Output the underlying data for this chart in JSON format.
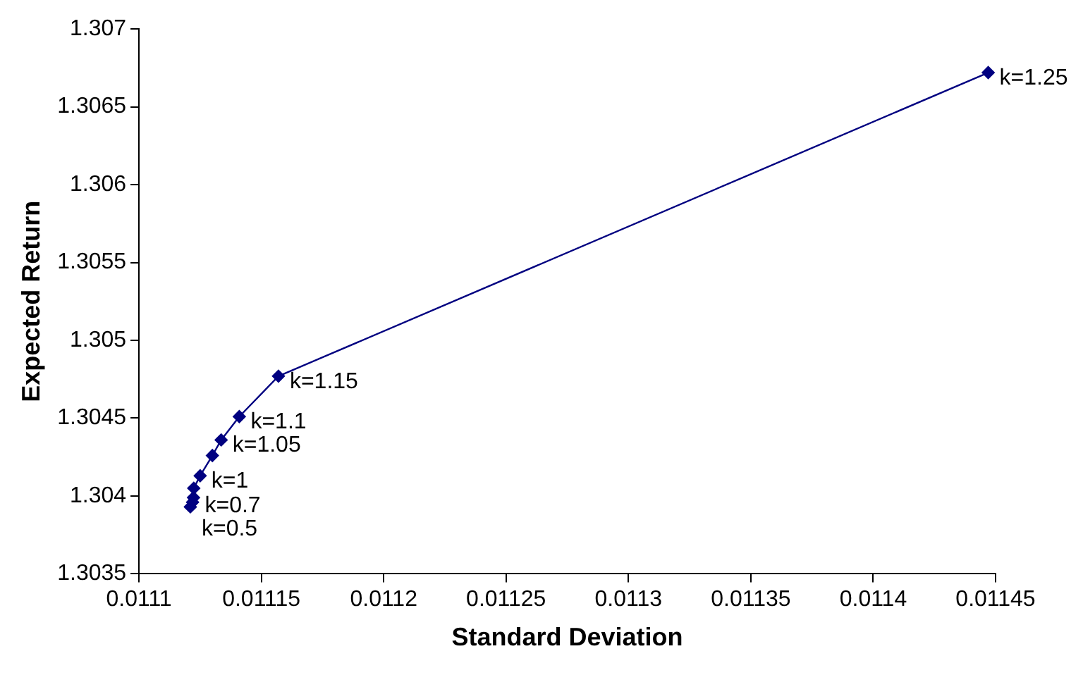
{
  "chart_data": {
    "type": "line",
    "xlabel": "Standard Deviation",
    "ylabel": "Expected Return",
    "x": [
      0.011121,
      0.0111219,
      0.0111223,
      0.0111224,
      0.011125,
      0.01113,
      0.0111336,
      0.011141,
      0.011157,
      0.011447
    ],
    "series": [
      {
        "color": "#000080",
        "values": [
          1.30393,
          1.30396,
          1.30399,
          1.30405,
          1.30413,
          1.30426,
          1.30436,
          1.30451,
          1.30477,
          1.30672
        ]
      }
    ],
    "xlim": [
      0.0111,
      0.01145
    ],
    "xticks": [
      0.0111,
      0.01115,
      0.0112,
      0.01125,
      0.0113,
      0.01135,
      0.0114,
      0.01145
    ],
    "ylim": [
      1.3035,
      1.307
    ],
    "yticks": [
      1.3035,
      1.304,
      1.3045,
      1.305,
      1.3055,
      1.306,
      1.3065,
      1.307
    ],
    "grid": false,
    "legend": false,
    "marker": "diamond",
    "line_style": "solid",
    "annotations": [
      {
        "text": "k=0.5",
        "x": 0.011121,
        "y": 1.30393
      },
      {
        "text": "k=0.7",
        "x": 0.0111223,
        "y": 1.30399
      },
      {
        "text": "k=1",
        "x": 0.011125,
        "y": 1.30413
      },
      {
        "text": "k=1.05",
        "x": 0.0111336,
        "y": 1.30436
      },
      {
        "text": "k=1.1",
        "x": 0.011141,
        "y": 1.30451
      },
      {
        "text": "k=1.15",
        "x": 0.011157,
        "y": 1.30477
      },
      {
        "text": "k=1.25",
        "x": 0.011447,
        "y": 1.30672
      }
    ]
  }
}
